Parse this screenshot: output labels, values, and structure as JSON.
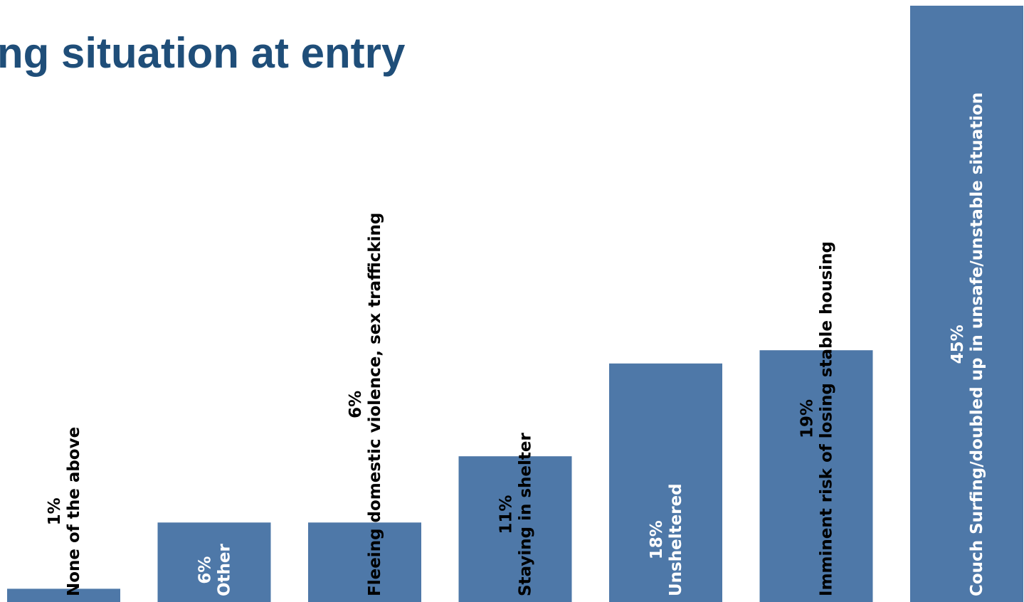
{
  "chart_data": {
    "type": "bar",
    "title": "ng situation at entry",
    "xlabel": "",
    "ylabel": "",
    "ylim": [
      0,
      45
    ],
    "grid": false,
    "legend": "none",
    "bar_color": "#4e78a8",
    "categories": [
      "None of the above",
      "Other",
      "Fleeing domestic violence, sex trafficking",
      "Staying in shelter",
      "Unsheltered",
      "Imminent risk of losing stable housing",
      "Couch Surfing/doubled up in unsafe/unstable situation"
    ],
    "values": [
      1,
      6,
      6,
      11,
      18,
      19,
      45
    ],
    "value_labels": [
      "1%",
      "6%",
      "6%",
      "11%",
      "18%",
      "19%",
      "45%"
    ],
    "label_colors": [
      "#000000",
      "#ffffff",
      "#000000",
      "#000000",
      "#ffffff",
      "#000000",
      "#ffffff"
    ]
  }
}
